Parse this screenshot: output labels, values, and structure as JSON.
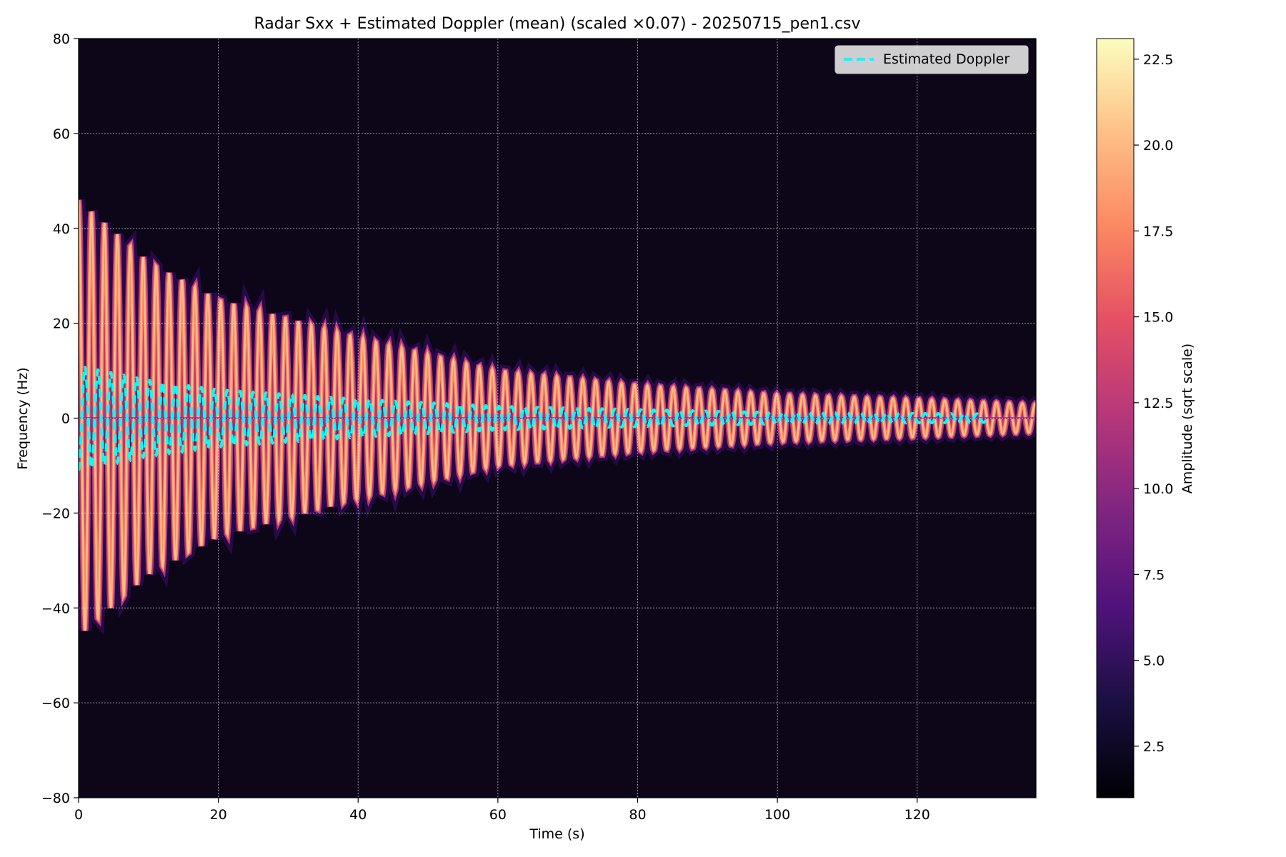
{
  "chart_data": {
    "type": "heatmap",
    "title": "Radar Sxx + Estimated Doppler (mean) (scaled ×0.07) - 20250715_pen1.csv",
    "xlabel": "Time (s)",
    "ylabel": "Frequency (Hz)",
    "xlim": [
      0,
      137
    ],
    "ylim": [
      -80,
      80
    ],
    "xticks": [
      0,
      20,
      40,
      60,
      80,
      100,
      120
    ],
    "yticks": [
      -80,
      -60,
      -40,
      -20,
      0,
      20,
      40,
      60,
      80
    ],
    "grid": true,
    "legend": {
      "position": "top-right",
      "entries": [
        "Estimated Doppler"
      ]
    },
    "colorbar": {
      "label": "Amplitude (sqrt scale)",
      "range": [
        1.0,
        23.1
      ],
      "ticks": [
        2.5,
        5.0,
        7.5,
        10.0,
        12.5,
        15.0,
        17.5,
        20.0,
        22.5
      ],
      "colormap": "magma"
    },
    "spectrogram": {
      "description_values": {
        "oscillation_period_s": 1.85,
        "envelope_hz_at_t": [
          [
            0,
            46
          ],
          [
            10,
            33
          ],
          [
            20,
            25
          ],
          [
            40,
            17
          ],
          [
            60,
            10
          ],
          [
            80,
            7
          ],
          [
            100,
            5
          ],
          [
            120,
            4
          ],
          [
            137,
            3
          ]
        ],
        "peak_amplitude": 22.5,
        "background_amplitude": 3.0
      }
    },
    "series": [
      {
        "name": "Estimated Doppler",
        "style": "dashed",
        "color": "#00ffff",
        "x_range": [
          0,
          130
        ],
        "amplitude_hz_at_t": [
          [
            0,
            11
          ],
          [
            10,
            8
          ],
          [
            20,
            6
          ],
          [
            40,
            4
          ],
          [
            60,
            2.5
          ],
          [
            80,
            1.8
          ],
          [
            100,
            1.2
          ],
          [
            120,
            1.0
          ],
          [
            130,
            0.9
          ]
        ]
      }
    ]
  }
}
